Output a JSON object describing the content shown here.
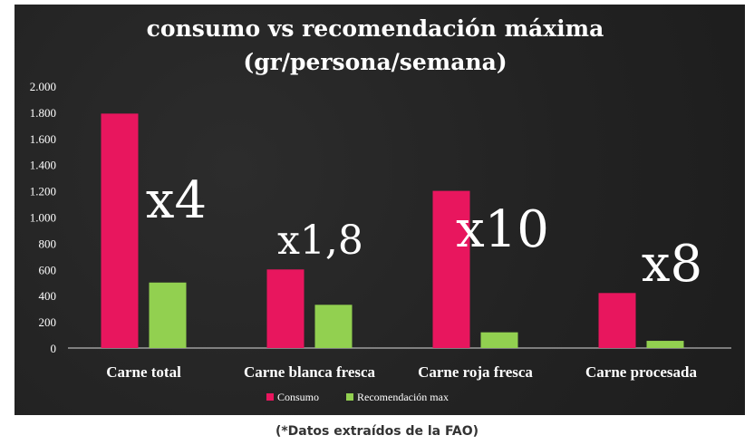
{
  "chart_data": {
    "type": "bar",
    "title_lines": [
      "consumo vs recomendación máxima",
      "(gr/persona/semana)"
    ],
    "categories": [
      "Carne total",
      "Carne blanca fresca",
      "Carne roja fresca",
      "Carne procesada"
    ],
    "series": [
      {
        "name": "Consumo",
        "color": "#e8165e",
        "values": [
          1790,
          600,
          1200,
          420
        ]
      },
      {
        "name": "Recomendación max",
        "color": "#92d050",
        "values": [
          500,
          330,
          120,
          55
        ]
      }
    ],
    "ylim": [
      0,
      2000
    ],
    "yticks": [
      0,
      200,
      400,
      600,
      800,
      1000,
      1200,
      1400,
      1600,
      1800,
      2000
    ],
    "ytick_labels": [
      "0",
      "200",
      "400",
      "600",
      "800",
      "1.000",
      "1.200",
      "1.400",
      "1.600",
      "1.800",
      "2.000"
    ],
    "annotations": [
      "x4",
      "x1,8",
      "x10",
      "x8"
    ],
    "legend_position": "bottom",
    "background_color": "#252525"
  },
  "source_note": "(*Datos extraídos de la FAO)"
}
